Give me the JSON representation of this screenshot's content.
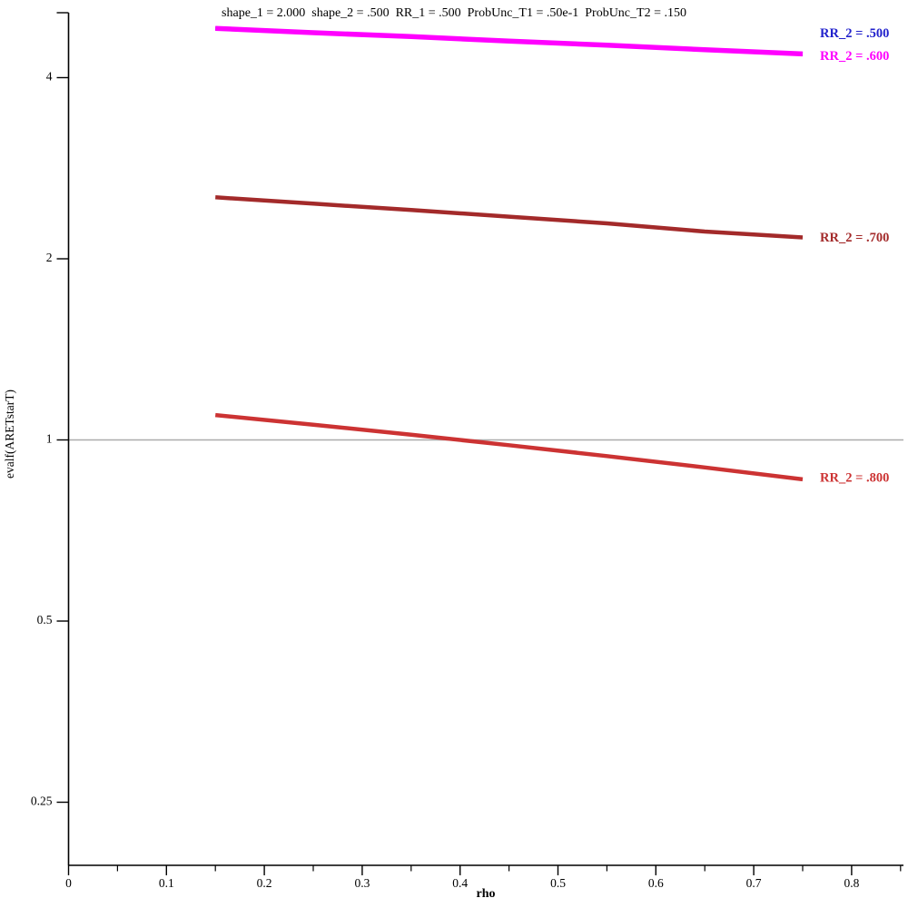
{
  "chart_data": {
    "type": "line",
    "title": "shape_1 = 2.000  shape_2 = .500  RR_1 = .500  ProbUnc_T1 = .50e-1  ProbUnc_T2 = .150",
    "xlabel": "rho",
    "ylabel": "evalf(ARETstarT)",
    "y_scale": "log2",
    "grid": false,
    "xlim": [
      0,
      0.853
    ],
    "ylim": [
      0.2,
      5.13
    ],
    "x_major_ticks": [
      0,
      0.1,
      0.2,
      0.3,
      0.4,
      0.5,
      0.6,
      0.7,
      0.8
    ],
    "x_tick_labels": [
      "0",
      "0.1",
      "0.2",
      "0.3",
      "0.4",
      "0.5",
      "0.6",
      "0.7",
      "0.8"
    ],
    "x_minor_ticks": [
      0.05,
      0.15,
      0.25,
      0.35,
      0.45,
      0.55,
      0.65,
      0.75,
      0.85
    ],
    "y_major_ticks": [
      4,
      2,
      1,
      0.5,
      0.25
    ],
    "y_tick_labels": [
      "4",
      "2",
      "1",
      "0.5",
      "0.25"
    ],
    "axis_color": "#000000",
    "reference_line": {
      "value": 1,
      "color": "#ABABAB"
    },
    "x": [
      0.15,
      0.25,
      0.35,
      0.45,
      0.55,
      0.65,
      0.75
    ],
    "series": [
      {
        "name": "RR_2 = .500",
        "label": "RR_2 = .500",
        "color": "#2222CC",
        "values": [
          4.83,
          4.75,
          4.68,
          4.6,
          4.53,
          4.45,
          4.38
        ],
        "label_value": 4.72,
        "width": 4.5,
        "note": "overlapped by RR_2 = .600 curve"
      },
      {
        "name": "RR_2 = .600",
        "label": "RR_2 = .600",
        "color": "#FF00FF",
        "values": [
          4.83,
          4.75,
          4.68,
          4.6,
          4.53,
          4.45,
          4.38
        ],
        "label_value": 4.33,
        "width": 5.5
      },
      {
        "name": "RR_2 = .700",
        "label": "RR_2 = .700",
        "color": "#A32A2A",
        "values": [
          2.53,
          2.47,
          2.41,
          2.35,
          2.29,
          2.22,
          2.17
        ],
        "label_value": 2.16,
        "width": 4.5
      },
      {
        "name": "RR_2 = .800",
        "label": "RR_2 = .800",
        "color": "#CC3333",
        "values": [
          1.1,
          1.06,
          1.02,
          0.98,
          0.94,
          0.9,
          0.86
        ],
        "label_value": 0.862,
        "width": 4.5
      }
    ]
  }
}
